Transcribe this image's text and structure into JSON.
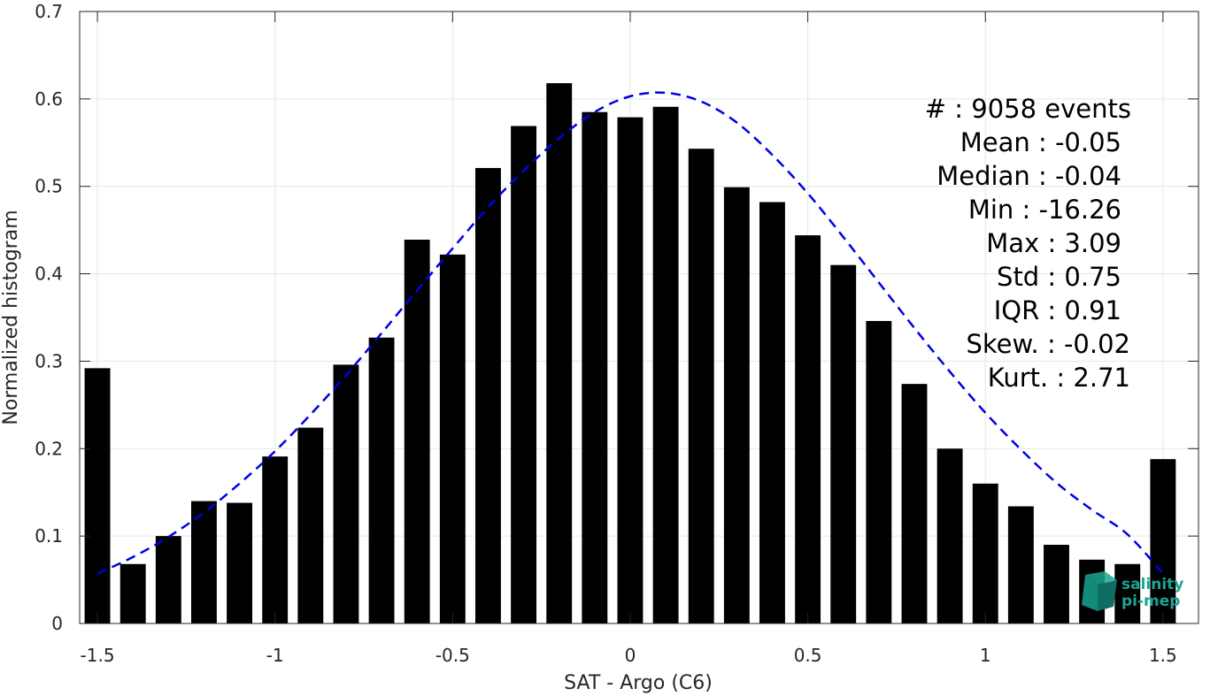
{
  "chart_data": {
    "type": "bar",
    "xlabel": "SAT - Argo (C6)",
    "ylabel": "Normalized histogram",
    "xlim": [
      -1.55,
      1.6
    ],
    "ylim": [
      0,
      0.7
    ],
    "xticks": [
      -1.5,
      -1,
      -0.5,
      0,
      0.5,
      1,
      1.5
    ],
    "xtick_labels": [
      "-1.5",
      "-1",
      "-0.5",
      "0",
      "0.5",
      "1",
      "1.5"
    ],
    "yticks": [
      0,
      0.1,
      0.2,
      0.3,
      0.4,
      0.5,
      0.6,
      0.7
    ],
    "ytick_labels": [
      "0",
      "0.1",
      "0.2",
      "0.3",
      "0.4",
      "0.5",
      "0.6",
      "0.7"
    ],
    "grid": true,
    "x": [
      -1.5,
      -1.4,
      -1.3,
      -1.2,
      -1.1,
      -1.0,
      -0.9,
      -0.8,
      -0.7,
      -0.6,
      -0.5,
      -0.4,
      -0.3,
      -0.2,
      -0.1,
      0.0,
      0.1,
      0.2,
      0.3,
      0.4,
      0.5,
      0.6,
      0.7,
      0.8,
      0.9,
      1.0,
      1.1,
      1.2,
      1.3,
      1.4,
      1.5
    ],
    "values": [
      0.292,
      0.068,
      0.1,
      0.14,
      0.138,
      0.191,
      0.224,
      0.296,
      0.327,
      0.439,
      0.422,
      0.521,
      0.569,
      0.618,
      0.585,
      0.579,
      0.591,
      0.543,
      0.499,
      0.482,
      0.444,
      0.41,
      0.346,
      0.274,
      0.2,
      0.16,
      0.134,
      0.09,
      0.073,
      0.068,
      0.188
    ],
    "bar_color": "#000000",
    "fit_curve": {
      "style": "dashed",
      "color": "#0000e6",
      "x": [
        -1.5,
        -1.4,
        -1.3,
        -1.2,
        -1.1,
        -1.0,
        -0.9,
        -0.8,
        -0.7,
        -0.6,
        -0.5,
        -0.4,
        -0.3,
        -0.2,
        -0.1,
        0.0,
        0.1,
        0.2,
        0.3,
        0.4,
        0.5,
        0.6,
        0.7,
        0.8,
        0.9,
        1.0,
        1.1,
        1.2,
        1.3,
        1.4,
        1.5
      ],
      "y": [
        0.057,
        0.076,
        0.099,
        0.127,
        0.16,
        0.197,
        0.239,
        0.284,
        0.332,
        0.381,
        0.429,
        0.476,
        0.518,
        0.555,
        0.585,
        0.603,
        0.607,
        0.597,
        0.573,
        0.536,
        0.492,
        0.442,
        0.39,
        0.338,
        0.288,
        0.241,
        0.199,
        0.161,
        0.13,
        0.102,
        0.057
      ]
    },
    "annotations": [
      "#  : 9058 events",
      "Mean : -0.05",
      "Median : -0.04",
      "Min : -16.26",
      "Max : 3.09",
      "Std : 0.75",
      "IQR : 0.91",
      "Skew. : -0.02",
      "Kurt. : 2.71"
    ]
  },
  "logo": {
    "line1": "salinity",
    "line2": "pi-mep",
    "color": "#1aa593"
  }
}
